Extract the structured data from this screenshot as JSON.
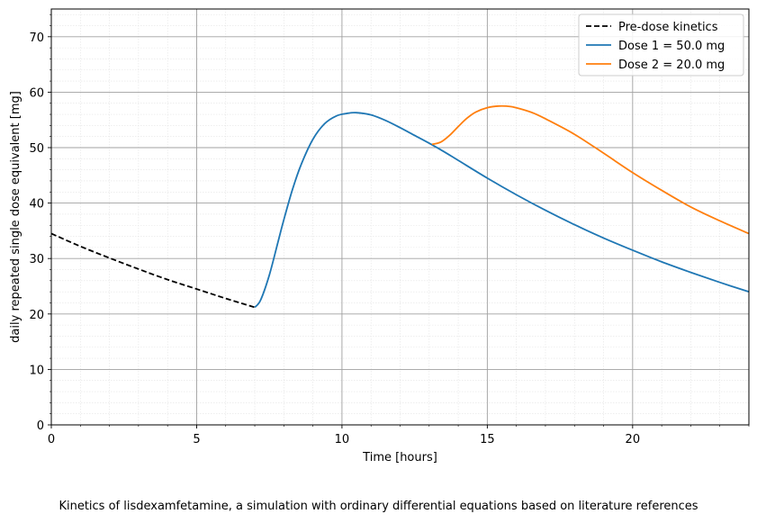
{
  "caption": "Kinetics of lisdexamfetamine, a simulation with ordinary differential equations based on literature references",
  "chart_data": {
    "type": "line",
    "title": "",
    "xlabel": "Time [hours]",
    "ylabel": "daily repeated single dose equivalent [mg]",
    "xlim": [
      0,
      24
    ],
    "ylim": [
      0,
      75
    ],
    "xticks": [
      0,
      5,
      10,
      15,
      20
    ],
    "yticks": [
      0,
      10,
      20,
      30,
      40,
      50,
      60,
      70
    ],
    "grid": true,
    "minor_grid": true,
    "legend_position": "top-right",
    "series": [
      {
        "name": "Pre-dose kinetics",
        "color": "#000000",
        "style": "dashed",
        "x": [
          0,
          1,
          2,
          3,
          4,
          5,
          6,
          7
        ],
        "y": [
          34.5,
          32.2,
          30.1,
          28.1,
          26.2,
          24.5,
          22.8,
          21.2
        ]
      },
      {
        "name": "Dose 1 = 50.0 mg",
        "color": "#1f77b4",
        "style": "solid",
        "x": [
          7,
          7.2,
          7.5,
          7.8,
          8,
          8.3,
          8.6,
          9,
          9.4,
          9.8,
          10.2,
          10.5,
          11,
          11.5,
          12,
          12.5,
          13,
          13.5,
          14,
          15,
          16,
          17,
          18,
          19,
          20,
          21,
          22,
          23,
          24
        ],
        "y": [
          21.2,
          22.5,
          27.0,
          33.0,
          37.0,
          42.5,
          47.0,
          51.5,
          54.3,
          55.7,
          56.2,
          56.3,
          55.9,
          54.9,
          53.6,
          52.2,
          50.8,
          49.3,
          47.7,
          44.5,
          41.5,
          38.7,
          36.1,
          33.7,
          31.5,
          29.4,
          27.5,
          25.7,
          24.0
        ]
      },
      {
        "name": "Dose 2 = 20.0 mg",
        "color": "#ff7f0e",
        "style": "solid",
        "x": [
          13.1,
          13.4,
          13.7,
          14,
          14.3,
          14.6,
          15,
          15.4,
          15.8,
          16.2,
          16.6,
          17,
          18,
          19,
          20,
          21,
          22,
          23,
          24
        ],
        "y": [
          50.6,
          51.0,
          52.2,
          53.8,
          55.3,
          56.4,
          57.2,
          57.5,
          57.4,
          56.9,
          56.2,
          55.2,
          52.4,
          49.0,
          45.5,
          42.3,
          39.3,
          36.8,
          34.5
        ]
      }
    ]
  }
}
